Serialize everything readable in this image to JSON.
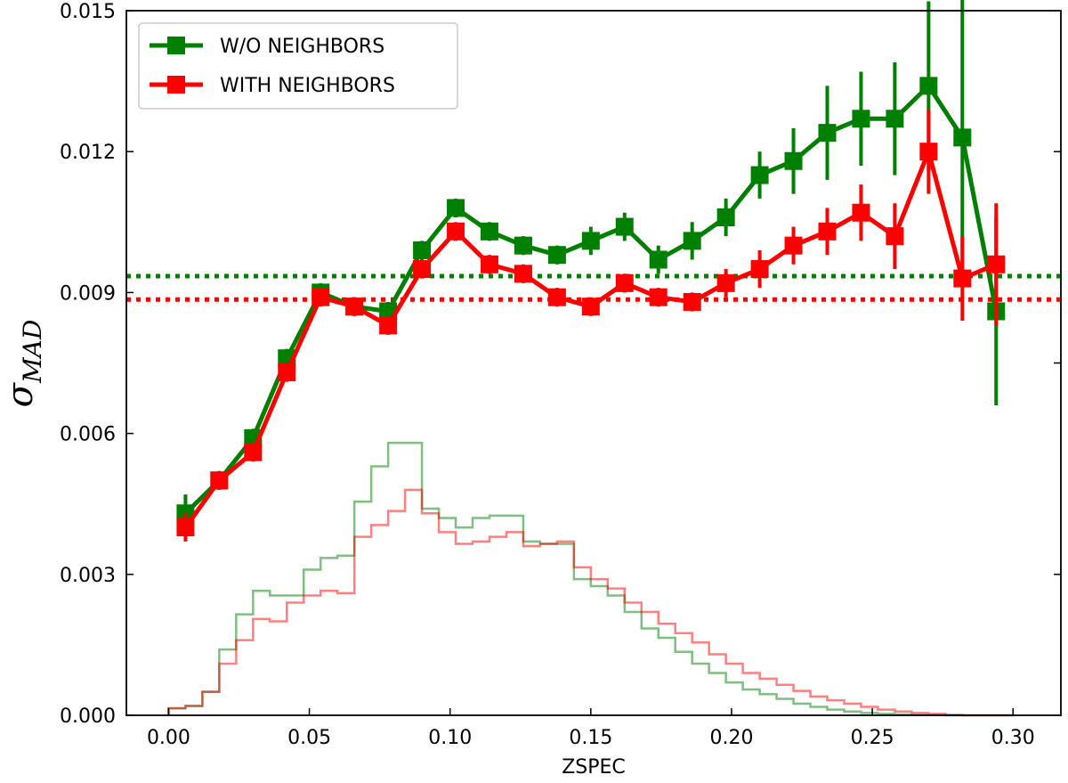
{
  "chart_data": {
    "type": "line",
    "xlabel": "ZSPEC",
    "ylabel_symbol": "σ",
    "ylabel_subscript": "MAD",
    "xlim": [
      -0.015,
      0.317
    ],
    "ylim": [
      0.0,
      0.015
    ],
    "xticks": [
      0.0,
      0.05,
      0.1,
      0.15,
      0.2,
      0.25,
      0.3
    ],
    "xtick_labels": [
      "0.00",
      "0.05",
      "0.10",
      "0.15",
      "0.20",
      "0.25",
      "0.30"
    ],
    "yticks": [
      0.0,
      0.003,
      0.006,
      0.009,
      0.012,
      0.015
    ],
    "ytick_labels": [
      "0.000",
      "0.003",
      "0.006",
      "0.009",
      "0.012",
      "0.015"
    ],
    "right_axis_tick_positions": [
      0.003,
      0.0075,
      0.012
    ],
    "grid": false,
    "legend_placement": "top-left",
    "x": [
      0.006,
      0.018,
      0.03,
      0.042,
      0.054,
      0.066,
      0.078,
      0.09,
      0.102,
      0.114,
      0.126,
      0.138,
      0.15,
      0.162,
      0.174,
      0.186,
      0.198,
      0.21,
      0.222,
      0.234,
      0.246,
      0.258,
      0.27,
      0.282,
      0.294
    ],
    "series": [
      {
        "name": "W/O NEIGHBORS",
        "color": "#008000",
        "marker": "square",
        "values": [
          0.0043,
          0.005,
          0.0059,
          0.0076,
          0.009,
          0.0087,
          0.0086,
          0.0099,
          0.0108,
          0.0103,
          0.01,
          0.0098,
          0.0101,
          0.0104,
          0.0097,
          0.0101,
          0.0106,
          0.0115,
          0.0118,
          0.0124,
          0.0127,
          0.0127,
          0.0134,
          0.0123,
          0.0086
        ],
        "errors": [
          0.0004,
          0.0002,
          0.0002,
          0.0002,
          0.0002,
          0.0002,
          0.0002,
          0.0002,
          0.0002,
          0.0002,
          0.0002,
          0.0002,
          0.0003,
          0.0003,
          0.0003,
          0.0004,
          0.0004,
          0.0005,
          0.0007,
          0.001,
          0.001,
          0.0012,
          0.0018,
          0.003,
          0.002
        ],
        "mean_line": 0.00935
      },
      {
        "name": "WITH NEIGHBORS",
        "color": "#ff0000",
        "marker": "square",
        "values": [
          0.004,
          0.005,
          0.0056,
          0.0073,
          0.0089,
          0.0087,
          0.0083,
          0.0095,
          0.0103,
          0.0096,
          0.0094,
          0.0089,
          0.0087,
          0.0092,
          0.0089,
          0.0088,
          0.0092,
          0.0095,
          0.01,
          0.0103,
          0.0107,
          0.0102,
          0.012,
          0.0093,
          0.0096
        ],
        "errors": [
          0.0003,
          0.0002,
          0.0002,
          0.0002,
          0.0002,
          0.0002,
          0.0002,
          0.0002,
          0.0002,
          0.0002,
          0.0002,
          0.0002,
          0.0002,
          0.0002,
          0.0002,
          0.0002,
          0.0003,
          0.0004,
          0.0004,
          0.0005,
          0.0006,
          0.0007,
          0.0009,
          0.0009,
          0.0013
        ],
        "mean_line": 0.00885
      }
    ],
    "histograms": [
      {
        "series": "W/O NEIGHBORS",
        "color": "#008000",
        "bin_width": 0.006,
        "bin_start": 0.0,
        "counts": [
          0.00015,
          0.0002,
          0.0005,
          0.0014,
          0.00215,
          0.00265,
          0.00255,
          0.00255,
          0.0031,
          0.00335,
          0.0034,
          0.00455,
          0.0053,
          0.0058,
          0.0058,
          0.0044,
          0.0042,
          0.004,
          0.0042,
          0.00425,
          0.00425,
          0.0037,
          0.00365,
          0.00365,
          0.0029,
          0.00275,
          0.00255,
          0.0022,
          0.00185,
          0.00165,
          0.00135,
          0.0011,
          0.0009,
          0.0007,
          0.00055,
          0.00045,
          0.00035,
          0.00025,
          0.00018,
          0.00012,
          8e-05,
          5e-05,
          3e-05,
          2e-05,
          1e-05,
          5e-06,
          0.0,
          0.0,
          0.0,
          0.0
        ]
      },
      {
        "series": "WITH NEIGHBORS",
        "color": "#ff0000",
        "bin_width": 0.006,
        "bin_start": 0.0,
        "counts": [
          0.00015,
          0.0002,
          0.0005,
          0.0011,
          0.0016,
          0.00205,
          0.002,
          0.0024,
          0.00255,
          0.00265,
          0.0026,
          0.0038,
          0.00405,
          0.00435,
          0.0048,
          0.0043,
          0.0039,
          0.00365,
          0.0037,
          0.0038,
          0.0039,
          0.0036,
          0.00365,
          0.0037,
          0.00315,
          0.0029,
          0.0027,
          0.0024,
          0.0022,
          0.00195,
          0.00175,
          0.00155,
          0.0013,
          0.0011,
          0.0009,
          0.00078,
          0.00065,
          0.00052,
          0.0004,
          0.00032,
          0.00025,
          0.00018,
          0.00012,
          8e-05,
          5e-05,
          3e-05,
          1e-05,
          0.0,
          0.0,
          0.0
        ]
      }
    ]
  }
}
